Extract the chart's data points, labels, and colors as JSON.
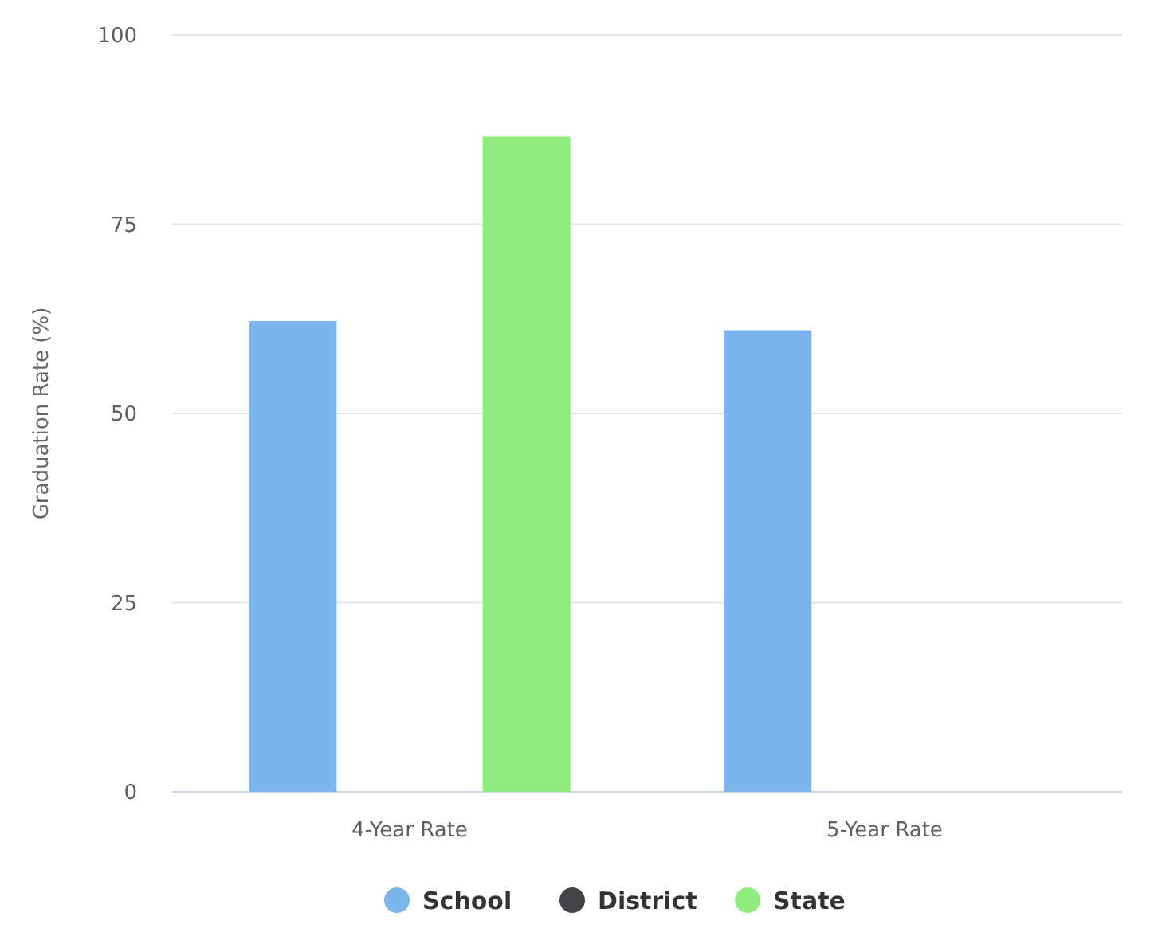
{
  "chart_data": {
    "type": "bar",
    "ylabel": "Graduation Rate (%)",
    "categories": [
      "4-Year Rate",
      "5-Year Rate"
    ],
    "series": [
      {
        "name": "School",
        "color": "#7cb5ec",
        "values": [
          62.2,
          61.0
        ]
      },
      {
        "name": "District",
        "color": "#434348",
        "values": [
          null,
          null
        ]
      },
      {
        "name": "State",
        "color": "#90ed7d",
        "values": [
          86.6,
          null
        ]
      }
    ],
    "ylim": [
      0,
      100
    ],
    "yticks": [
      0,
      25,
      50,
      75,
      100
    ],
    "grid": "y",
    "legend": "bottom"
  }
}
